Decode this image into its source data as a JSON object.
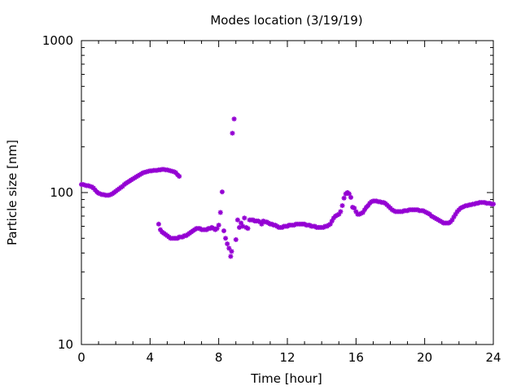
{
  "chart_data": {
    "type": "scatter",
    "title": "Modes location (3/19/19)",
    "xlabel": "Time [hour]",
    "ylabel": "Particle size [nm]",
    "xlim": [
      0,
      24
    ],
    "ylim": [
      10,
      1000
    ],
    "yscale": "log",
    "grid": false,
    "legend": "none",
    "marker": "star",
    "x_ticks": [
      0,
      4,
      8,
      12,
      16,
      20,
      24
    ],
    "x_tick_labels": [
      "0",
      "4",
      "8",
      "12",
      "16",
      "20",
      "24"
    ],
    "y_ticks": [
      10,
      100,
      1000
    ],
    "y_tick_labels": [
      "10",
      "100",
      "1000"
    ],
    "colors": {
      "series": "#9400D3",
      "axis": "#000000",
      "background": "#ffffff"
    },
    "series": [
      {
        "points": [
          [
            0.0,
            113
          ],
          [
            0.1,
            113
          ],
          [
            0.2,
            112
          ],
          [
            0.3,
            111
          ],
          [
            0.4,
            111
          ],
          [
            0.5,
            110
          ],
          [
            0.6,
            109
          ],
          [
            0.7,
            107
          ],
          [
            0.8,
            104
          ],
          [
            0.9,
            101
          ],
          [
            1.0,
            99
          ],
          [
            1.1,
            98
          ],
          [
            1.2,
            97
          ],
          [
            1.3,
            97
          ],
          [
            1.4,
            96
          ],
          [
            1.5,
            96
          ],
          [
            1.6,
            96
          ],
          [
            1.7,
            97
          ],
          [
            1.8,
            98
          ],
          [
            1.9,
            100
          ],
          [
            2.0,
            102
          ],
          [
            2.1,
            104
          ],
          [
            2.2,
            106
          ],
          [
            2.3,
            108
          ],
          [
            2.4,
            110
          ],
          [
            2.5,
            113
          ],
          [
            2.6,
            115
          ],
          [
            2.7,
            117
          ],
          [
            2.8,
            119
          ],
          [
            2.9,
            121
          ],
          [
            3.0,
            123
          ],
          [
            3.1,
            125
          ],
          [
            3.2,
            127
          ],
          [
            3.3,
            129
          ],
          [
            3.4,
            131
          ],
          [
            3.5,
            133
          ],
          [
            3.6,
            135
          ],
          [
            3.7,
            136
          ],
          [
            3.8,
            137
          ],
          [
            3.9,
            138
          ],
          [
            4.0,
            139
          ],
          [
            4.1,
            139
          ],
          [
            4.2,
            140
          ],
          [
            4.3,
            140
          ],
          [
            4.4,
            140
          ],
          [
            4.5,
            141
          ],
          [
            4.6,
            141
          ],
          [
            4.7,
            142
          ],
          [
            4.8,
            142
          ],
          [
            4.9,
            141
          ],
          [
            5.0,
            141
          ],
          [
            5.1,
            140
          ],
          [
            5.2,
            139
          ],
          [
            5.3,
            138
          ],
          [
            5.4,
            137
          ],
          [
            5.5,
            135
          ],
          [
            5.6,
            131
          ],
          [
            5.7,
            128
          ],
          [
            4.5,
            62
          ],
          [
            4.6,
            57
          ],
          [
            4.7,
            55
          ],
          [
            4.8,
            54
          ],
          [
            4.9,
            53
          ],
          [
            5.0,
            52
          ],
          [
            5.1,
            51
          ],
          [
            5.2,
            50
          ],
          [
            5.3,
            50
          ],
          [
            5.4,
            50
          ],
          [
            5.5,
            50
          ],
          [
            5.6,
            50
          ],
          [
            5.7,
            51
          ],
          [
            5.8,
            51
          ],
          [
            5.9,
            51
          ],
          [
            6.0,
            52
          ],
          [
            6.1,
            52
          ],
          [
            6.2,
            53
          ],
          [
            6.3,
            54
          ],
          [
            6.4,
            55
          ],
          [
            6.5,
            56
          ],
          [
            6.6,
            57
          ],
          [
            6.7,
            58
          ],
          [
            6.8,
            58
          ],
          [
            6.9,
            58
          ],
          [
            7.0,
            57
          ],
          [
            7.1,
            57
          ],
          [
            7.2,
            57
          ],
          [
            7.3,
            57
          ],
          [
            7.4,
            58
          ],
          [
            7.5,
            58
          ],
          [
            7.6,
            59
          ],
          [
            7.7,
            58
          ],
          [
            7.8,
            57
          ],
          [
            7.9,
            58
          ],
          [
            8.0,
            61
          ],
          [
            8.1,
            74
          ],
          [
            8.2,
            101
          ],
          [
            8.3,
            56
          ],
          [
            8.4,
            50
          ],
          [
            8.5,
            46
          ],
          [
            8.6,
            43
          ],
          [
            8.7,
            38
          ],
          [
            8.75,
            41
          ],
          [
            8.8,
            246
          ],
          [
            8.9,
            305
          ],
          [
            9.0,
            49
          ],
          [
            9.1,
            66
          ],
          [
            9.2,
            59
          ],
          [
            9.3,
            63
          ],
          [
            9.4,
            60
          ],
          [
            9.5,
            68
          ],
          [
            9.6,
            59
          ],
          [
            9.7,
            58
          ],
          [
            9.8,
            66
          ],
          [
            9.9,
            66
          ],
          [
            10.0,
            66
          ],
          [
            10.1,
            65
          ],
          [
            10.2,
            65
          ],
          [
            10.3,
            65
          ],
          [
            10.4,
            64
          ],
          [
            10.5,
            62
          ],
          [
            10.6,
            65
          ],
          [
            10.7,
            64
          ],
          [
            10.8,
            64
          ],
          [
            10.9,
            63
          ],
          [
            11.0,
            62
          ],
          [
            11.1,
            62
          ],
          [
            11.2,
            61
          ],
          [
            11.3,
            61
          ],
          [
            11.4,
            60
          ],
          [
            11.5,
            59
          ],
          [
            11.6,
            59
          ],
          [
            11.7,
            59
          ],
          [
            11.8,
            60
          ],
          [
            11.9,
            60
          ],
          [
            12.0,
            60
          ],
          [
            12.1,
            61
          ],
          [
            12.2,
            61
          ],
          [
            12.3,
            61
          ],
          [
            12.4,
            61
          ],
          [
            12.5,
            62
          ],
          [
            12.6,
            62
          ],
          [
            12.7,
            62
          ],
          [
            12.8,
            62
          ],
          [
            12.9,
            62
          ],
          [
            13.0,
            62
          ],
          [
            13.1,
            61
          ],
          [
            13.2,
            61
          ],
          [
            13.3,
            61
          ],
          [
            13.4,
            60
          ],
          [
            13.5,
            60
          ],
          [
            13.6,
            60
          ],
          [
            13.7,
            59
          ],
          [
            13.8,
            59
          ],
          [
            13.9,
            59
          ],
          [
            14.0,
            59
          ],
          [
            14.1,
            59
          ],
          [
            14.2,
            60
          ],
          [
            14.3,
            60
          ],
          [
            14.4,
            61
          ],
          [
            14.5,
            62
          ],
          [
            14.6,
            65
          ],
          [
            14.7,
            68
          ],
          [
            14.8,
            70
          ],
          [
            14.9,
            71
          ],
          [
            15.0,
            72
          ],
          [
            15.1,
            75
          ],
          [
            15.2,
            82
          ],
          [
            15.3,
            92
          ],
          [
            15.4,
            98
          ],
          [
            15.5,
            100
          ],
          [
            15.6,
            98
          ],
          [
            15.7,
            93
          ],
          [
            15.8,
            80
          ],
          [
            15.9,
            79
          ],
          [
            16.0,
            75
          ],
          [
            16.1,
            72
          ],
          [
            16.2,
            72
          ],
          [
            16.3,
            73
          ],
          [
            16.4,
            74
          ],
          [
            16.5,
            77
          ],
          [
            16.6,
            80
          ],
          [
            16.7,
            82
          ],
          [
            16.8,
            85
          ],
          [
            16.9,
            87
          ],
          [
            17.0,
            88
          ],
          [
            17.1,
            88
          ],
          [
            17.2,
            88
          ],
          [
            17.3,
            87
          ],
          [
            17.4,
            87
          ],
          [
            17.5,
            86
          ],
          [
            17.6,
            86
          ],
          [
            17.7,
            85
          ],
          [
            17.8,
            83
          ],
          [
            17.9,
            81
          ],
          [
            18.0,
            79
          ],
          [
            18.1,
            77
          ],
          [
            18.2,
            76
          ],
          [
            18.3,
            75
          ],
          [
            18.4,
            75
          ],
          [
            18.5,
            75
          ],
          [
            18.6,
            75
          ],
          [
            18.7,
            75
          ],
          [
            18.8,
            76
          ],
          [
            18.9,
            76
          ],
          [
            19.0,
            76
          ],
          [
            19.1,
            77
          ],
          [
            19.2,
            77
          ],
          [
            19.3,
            77
          ],
          [
            19.4,
            77
          ],
          [
            19.5,
            77
          ],
          [
            19.6,
            77
          ],
          [
            19.7,
            76
          ],
          [
            19.8,
            76
          ],
          [
            19.9,
            76
          ],
          [
            20.0,
            75
          ],
          [
            20.1,
            74
          ],
          [
            20.2,
            73
          ],
          [
            20.3,
            72
          ],
          [
            20.4,
            70
          ],
          [
            20.5,
            69
          ],
          [
            20.6,
            68
          ],
          [
            20.7,
            67
          ],
          [
            20.8,
            66
          ],
          [
            20.9,
            65
          ],
          [
            21.0,
            64
          ],
          [
            21.1,
            63
          ],
          [
            21.2,
            63
          ],
          [
            21.3,
            63
          ],
          [
            21.4,
            63
          ],
          [
            21.5,
            64
          ],
          [
            21.6,
            66
          ],
          [
            21.7,
            69
          ],
          [
            21.8,
            72
          ],
          [
            21.9,
            75
          ],
          [
            22.0,
            77
          ],
          [
            22.1,
            79
          ],
          [
            22.2,
            80
          ],
          [
            22.3,
            81
          ],
          [
            22.4,
            82
          ],
          [
            22.5,
            82
          ],
          [
            22.6,
            83
          ],
          [
            22.7,
            83
          ],
          [
            22.8,
            84
          ],
          [
            22.9,
            84
          ],
          [
            23.0,
            85
          ],
          [
            23.1,
            85
          ],
          [
            23.2,
            86
          ],
          [
            23.3,
            86
          ],
          [
            23.4,
            86
          ],
          [
            23.5,
            86
          ],
          [
            23.6,
            85
          ],
          [
            23.7,
            85
          ],
          [
            23.8,
            85
          ],
          [
            23.9,
            84
          ],
          [
            24.0,
            84
          ]
        ]
      }
    ]
  }
}
